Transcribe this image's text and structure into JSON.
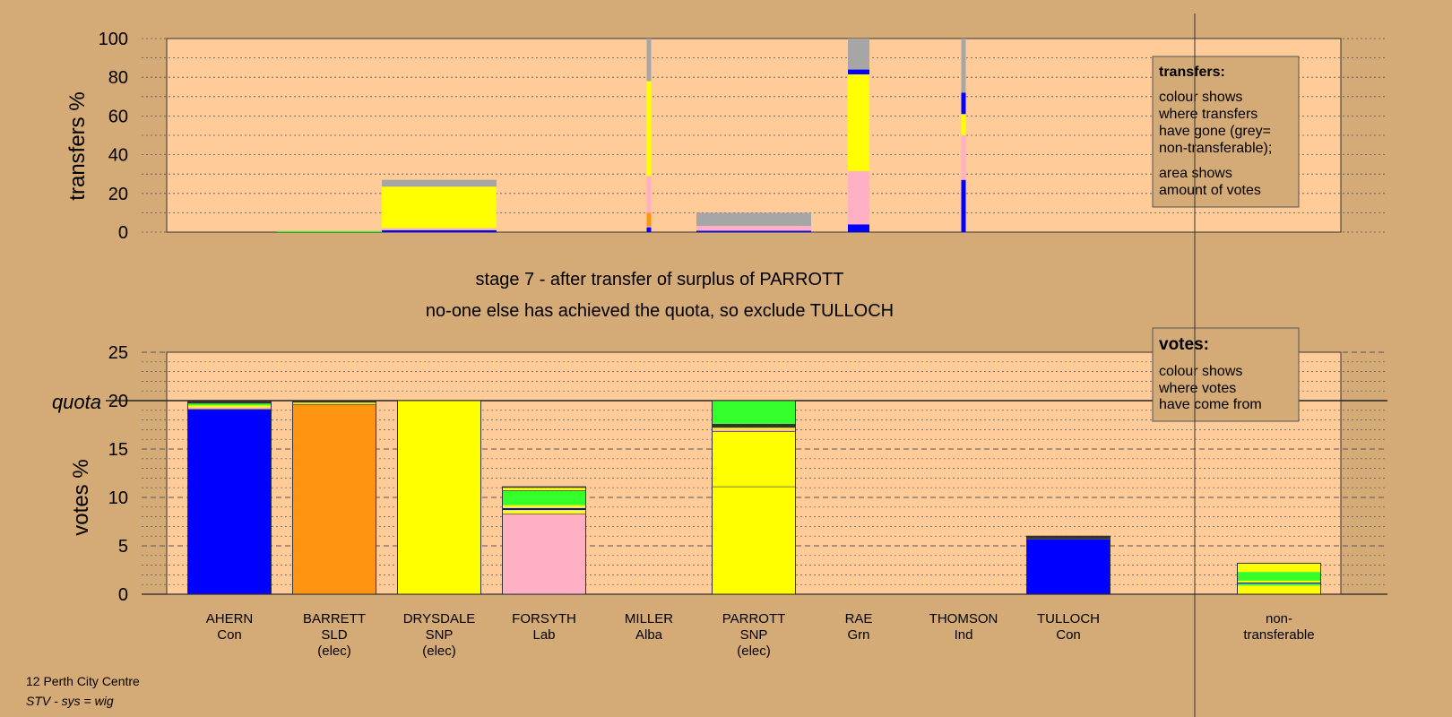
{
  "header": {
    "stage_text": "stage 7 - after transfer of surplus of PARROTT",
    "note_text": "no-one else has achieved the quota, so exclude TULLOCH"
  },
  "legend_transfers": {
    "title": "transfers:",
    "lines": [
      "colour shows",
      "where transfers",
      "have gone (grey=",
      "non-transferable);"
    ],
    "lines2": [
      "area shows",
      "amount of votes"
    ]
  },
  "legend_votes": {
    "title": "votes:",
    "lines": [
      "colour shows",
      "where votes",
      "have come from"
    ]
  },
  "footer": {
    "line1": "12 Perth City Centre",
    "line2": "STV - sys = wig"
  },
  "colors": {
    "page_background": "#d4aa76",
    "plot_background": "#ffcc99",
    "Con": "#0000ff",
    "SLD": "#ff9411",
    "SNP": "#ffff00",
    "Lab": "#ffb0c4",
    "Alba": "#34ff2b",
    "Grn": "#33ff33",
    "non_transferable": "#a6a6a6",
    "dark": "#333333"
  },
  "chart_data": [
    {
      "id": "transfers",
      "type": "bar",
      "ylabel": "transfers %",
      "ylim": [
        0,
        100
      ],
      "yticks": [
        0,
        20,
        40,
        60,
        80,
        100
      ],
      "grid": "dotted",
      "columns": [
        {
          "candidate": "BARRETT",
          "width": "wide",
          "segments": [
            {
              "party": "Alba",
              "value": 0.6
            }
          ]
        },
        {
          "candidate": "DRYSDALE",
          "width": "wide",
          "segments": [
            {
              "party": "Con",
              "value": 1
            },
            {
              "party": "Lab",
              "value": 1
            },
            {
              "party": "SNP",
              "value": 1.5
            },
            {
              "party": "SNP",
              "value": 20
            },
            {
              "party": "non_transferable",
              "value": 3.5
            }
          ]
        },
        {
          "candidate": "MILLER",
          "width": "narrow",
          "segments": [
            {
              "party": "Con",
              "value": 2.5
            },
            {
              "party": "Lab",
              "value": 0.5
            },
            {
              "party": "SLD",
              "value": 7
            },
            {
              "party": "Lab",
              "value": 19
            },
            {
              "party": "SNP",
              "value": 49
            },
            {
              "party": "non_transferable",
              "value": 22
            }
          ]
        },
        {
          "candidate": "PARROTT",
          "width": "wide",
          "segments": [
            {
              "party": "Con",
              "value": 0.7
            },
            {
              "party": "Lab",
              "value": 2.5
            },
            {
              "party": "non_transferable",
              "value": 6.8
            }
          ]
        },
        {
          "candidate": "RAE",
          "width": "medium",
          "segments": [
            {
              "party": "Con",
              "value": 4
            },
            {
              "party": "Lab",
              "value": 27.5
            },
            {
              "party": "SNP",
              "value": 50
            },
            {
              "party": "Con",
              "value": 2.5
            },
            {
              "party": "non_transferable",
              "value": 16
            }
          ]
        },
        {
          "candidate": "THOMSON",
          "width": "narrow",
          "segments": [
            {
              "party": "Con",
              "value": 27
            },
            {
              "party": "Lab",
              "value": 23
            },
            {
              "party": "SNP",
              "value": 11
            },
            {
              "party": "Con",
              "value": 11
            },
            {
              "party": "non_transferable",
              "value": 28
            }
          ]
        }
      ]
    },
    {
      "id": "votes",
      "type": "bar",
      "ylabel": "votes %",
      "ylim": [
        0,
        25
      ],
      "yticks": [
        0,
        5,
        10,
        15,
        20,
        25
      ],
      "quota": 20,
      "quota_label": "quota",
      "grid": "dashed",
      "categories": [
        {
          "name": "AHERN",
          "party": "Con",
          "status": ""
        },
        {
          "name": "BARRETT",
          "party": "SLD",
          "status": "(elec)"
        },
        {
          "name": "DRYSDALE",
          "party": "SNP",
          "status": "(elec)"
        },
        {
          "name": "FORSYTH",
          "party": "Lab",
          "status": ""
        },
        {
          "name": "MILLER",
          "party": "Alba",
          "status": ""
        },
        {
          "name": "PARROTT",
          "party": "SNP",
          "status": "(elec)"
        },
        {
          "name": "RAE",
          "party": "Grn",
          "status": ""
        },
        {
          "name": "THOMSON",
          "party": "Ind",
          "status": ""
        },
        {
          "name": "TULLOCH",
          "party": "Con",
          "status": ""
        }
      ],
      "nontransferable_label": [
        "non-",
        "transferable"
      ],
      "stacks": [
        [
          {
            "party": "Con",
            "value": 19.1
          },
          {
            "party": "Lab",
            "value": 0.2
          },
          {
            "party": "SNP",
            "value": 0.2
          },
          {
            "party": "Alba",
            "value": 0.2
          },
          {
            "party": "dark",
            "value": 0.2
          }
        ],
        [
          {
            "party": "SLD",
            "value": 19.6
          },
          {
            "party": "SNP",
            "value": 0.2
          },
          {
            "party": "dark",
            "value": 0.2
          }
        ],
        [
          {
            "party": "SNP",
            "value": 20
          }
        ],
        [
          {
            "party": "Lab",
            "value": 8.3
          },
          {
            "party": "SNP",
            "value": 0.4
          },
          {
            "party": "Con",
            "value": 0.2
          },
          {
            "party": "SNP",
            "value": 0.3
          },
          {
            "party": "Alba",
            "value": 1.5
          },
          {
            "party": "SNP",
            "value": 0.3
          },
          {
            "party": "dark",
            "value": 0.1
          }
        ],
        [],
        [
          {
            "party": "SNP",
            "value": 11.1
          },
          {
            "party": "SNP",
            "value": 5.7
          },
          {
            "party": "Lab",
            "value": 0.2
          },
          {
            "party": "SNP",
            "value": 0.2
          },
          {
            "party": "dark",
            "value": 0.4
          },
          {
            "party": "Alba",
            "value": 2.4
          }
        ],
        [],
        [],
        [
          {
            "party": "Con",
            "value": 5.7
          },
          {
            "party": "dark",
            "value": 0.3
          }
        ],
        [
          {
            "party": "SNP",
            "value": 0.9
          },
          {
            "party": "Alba",
            "value": 0.2
          },
          {
            "party": "Con",
            "value": 0.1
          },
          {
            "party": "SNP",
            "value": 0.2
          },
          {
            "party": "Alba",
            "value": 0.9
          },
          {
            "party": "SNP",
            "value": 0.9
          }
        ]
      ]
    }
  ]
}
